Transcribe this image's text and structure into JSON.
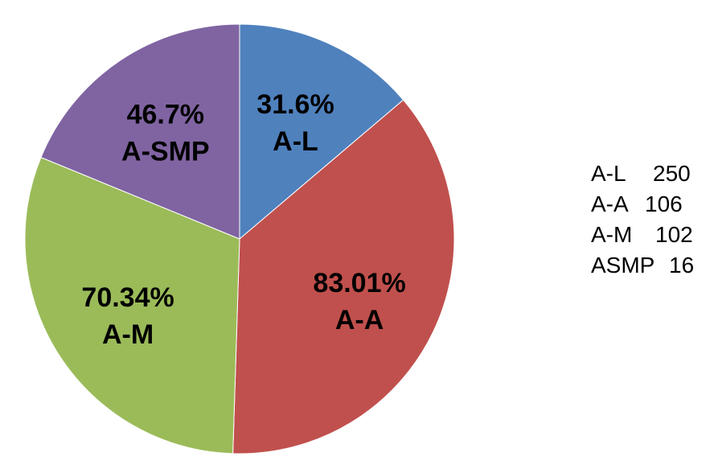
{
  "chart_data": {
    "type": "pie",
    "categories": [
      "A-L",
      "A-A",
      "A-M",
      "A-SMP"
    ],
    "values": [
      13.8,
      36.7,
      30.7,
      18.8
    ],
    "slice_labels": [
      {
        "percent": "31.6%",
        "name": "A-L"
      },
      {
        "percent": "83.01%",
        "name": "A-A"
      },
      {
        "percent": "70.34%",
        "name": "A-M"
      },
      {
        "percent": "46.7%",
        "name": "A-SMP"
      }
    ],
    "colors": [
      "#4F81BD",
      "#C0504D",
      "#9BBB59",
      "#8064A2"
    ],
    "start_angle_deg": 0,
    "direction": "clockwise",
    "legend": "right",
    "notes": [
      {
        "name": "A-L",
        "count": "250"
      },
      {
        "name": "A-A",
        "count": "106"
      },
      {
        "name": "A-M",
        "count": "102"
      },
      {
        "name": "ASMP",
        "count": "16"
      }
    ]
  }
}
